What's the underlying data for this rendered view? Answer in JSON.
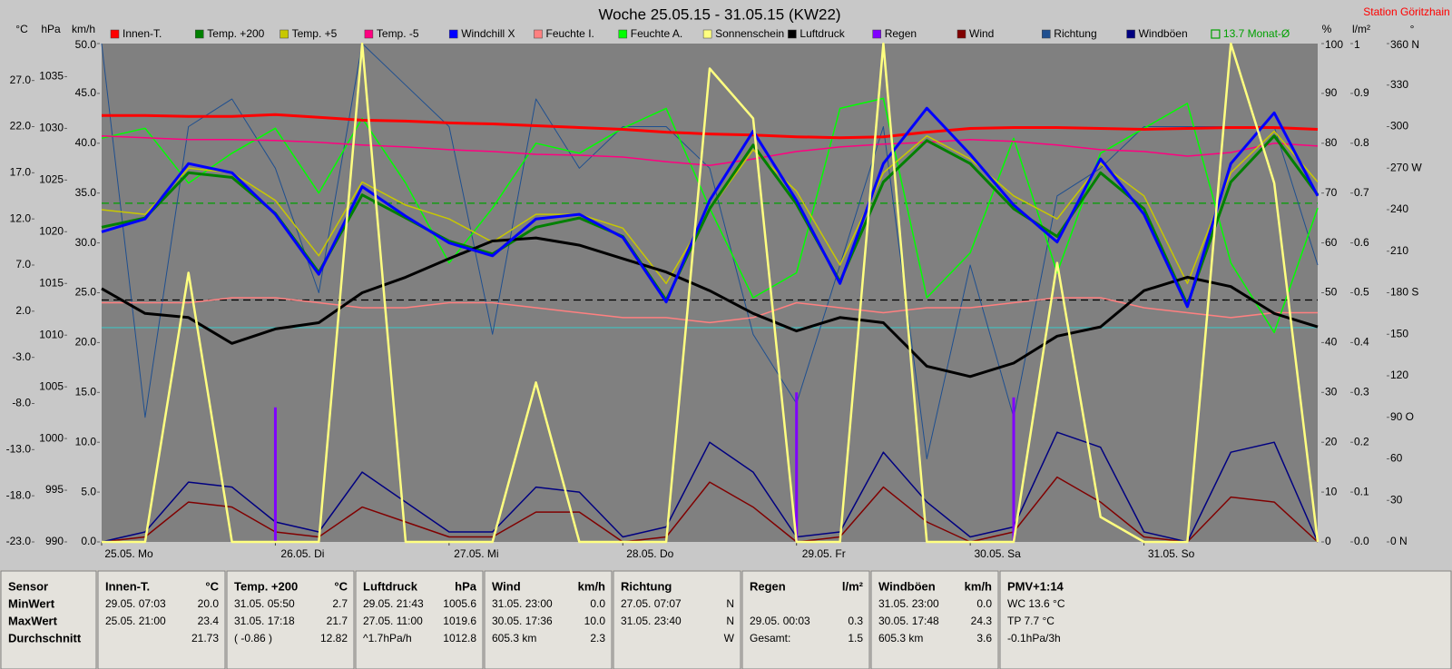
{
  "chart_data": {
    "type": "line",
    "title": "Woche 25.05.15 - 31.05.15 (KW22)",
    "station": "Station Göritzhain",
    "x": [
      0,
      6,
      12,
      18,
      24,
      30,
      36,
      42,
      48,
      54,
      60,
      66,
      72,
      78,
      84,
      90,
      96,
      102,
      108,
      114,
      120,
      126,
      132,
      138,
      144,
      150,
      156,
      162,
      168
    ],
    "xlim": [
      0,
      168
    ],
    "xticks": [
      {
        "value": 0,
        "label": "25.05. Mo"
      },
      {
        "value": 24,
        "label": "26.05. Di"
      },
      {
        "value": 48,
        "label": "27.05. Mi"
      },
      {
        "value": 72,
        "label": "28.05. Do"
      },
      {
        "value": 96,
        "label": "29.05. Fr"
      },
      {
        "value": 120,
        "label": "30.05. Sa"
      },
      {
        "value": 144,
        "label": "31.05. So"
      }
    ],
    "axes": [
      {
        "id": "temp",
        "label": "°C",
        "side": "left",
        "lim": [
          -23,
          31
        ],
        "ticks": [
          {
            "value": -23,
            "label": "-23.0"
          },
          {
            "value": -18,
            "label": "-18.0"
          },
          {
            "value": -13,
            "label": "-13.0"
          },
          {
            "value": -8,
            "label": "-8.0"
          },
          {
            "value": -3,
            "label": "-3.0"
          },
          {
            "value": 2,
            "label": "2.0"
          },
          {
            "value": 7,
            "label": "7.0"
          },
          {
            "value": 12,
            "label": "12.0"
          },
          {
            "value": 17,
            "label": "17.0"
          },
          {
            "value": 22,
            "label": "22.0"
          },
          {
            "value": 27,
            "label": "27.0"
          }
        ]
      },
      {
        "id": "hpa",
        "label": "hPa",
        "side": "left",
        "lim": [
          990,
          1038.2
        ],
        "ticks": [
          990,
          995,
          1000,
          1005,
          1010,
          1015,
          1020,
          1025,
          1030,
          1035
        ]
      },
      {
        "id": "kmh",
        "label": "km/h",
        "side": "left",
        "lim": [
          0,
          50
        ],
        "ticks": [
          {
            "value": 0,
            "label": "0.0"
          },
          {
            "value": 5,
            "label": "5.0"
          },
          {
            "value": 10,
            "label": "10.0"
          },
          {
            "value": 15,
            "label": "15.0"
          },
          {
            "value": 20,
            "label": "20.0"
          },
          {
            "value": 25,
            "label": "25.0"
          },
          {
            "value": 30,
            "label": "30.0"
          },
          {
            "value": 35,
            "label": "35.0"
          },
          {
            "value": 40,
            "label": "40.0"
          },
          {
            "value": 45,
            "label": "45.0"
          },
          {
            "value": 50,
            "label": "50.0"
          }
        ]
      },
      {
        "id": "pct",
        "label": "%",
        "side": "right",
        "lim": [
          0,
          100
        ],
        "ticks": [
          0,
          10,
          20,
          30,
          40,
          50,
          60,
          70,
          80,
          90,
          100
        ]
      },
      {
        "id": "lm2",
        "label": "l/m²",
        "side": "right",
        "lim": [
          0,
          1
        ],
        "ticks": [
          {
            "value": 0,
            "label": "0.0"
          },
          0.1,
          0.2,
          0.3,
          0.4,
          0.5,
          0.6,
          0.7,
          0.8,
          0.9,
          1
        ]
      },
      {
        "id": "deg",
        "label": "°",
        "side": "right",
        "lim": [
          0,
          360
        ],
        "ticks": [
          {
            "value": 0,
            "label": "0 N"
          },
          30,
          60,
          {
            "value": 90,
            "label": "90 O"
          },
          120,
          150,
          {
            "value": 180,
            "label": "180 S"
          },
          210,
          240,
          {
            "value": 270,
            "label": "270 W"
          },
          300,
          330,
          {
            "value": 360,
            "label": "360 N"
          }
        ]
      }
    ],
    "series": [
      {
        "name": "Innen-T.",
        "color": "#ff0000",
        "axis": "temp",
        "values": [
          23.2,
          23.2,
          23.1,
          23.1,
          23.3,
          23.0,
          22.7,
          22.6,
          22.4,
          22.3,
          22.1,
          21.9,
          21.7,
          21.4,
          21.2,
          21.1,
          20.9,
          20.8,
          20.9,
          21.4,
          21.8,
          21.9,
          21.9,
          21.8,
          21.7,
          21.8,
          21.9,
          21.9,
          21.7
        ]
      },
      {
        "name": "Temp. +200",
        "color": "#008000",
        "axis": "temp",
        "values": [
          11.1,
          12.1,
          17.0,
          16.5,
          12.6,
          6.2,
          14.6,
          12.1,
          9.6,
          8.2,
          11.1,
          12.1,
          10.1,
          3.2,
          13.1,
          20.0,
          13.6,
          5.2,
          16.0,
          20.5,
          18.0,
          13.1,
          10.1,
          17.0,
          13.1,
          2.7,
          16.0,
          21.0,
          14.6
        ]
      },
      {
        "name": "Temp. +5",
        "color": "#c8c800",
        "axis": "temp",
        "values": [
          13.0,
          12.5,
          17.5,
          17.0,
          14.0,
          8.0,
          16.0,
          13.5,
          12.0,
          9.5,
          12.5,
          12.5,
          11.0,
          5.0,
          13.0,
          19.5,
          15.0,
          7.0,
          17.0,
          21.0,
          18.5,
          14.5,
          12.0,
          18.0,
          14.5,
          5.0,
          17.0,
          21.5,
          16.0
        ]
      },
      {
        "name": "Temp. -5",
        "color": "#ff0080",
        "axis": "temp",
        "values": [
          21.0,
          20.8,
          20.6,
          20.6,
          20.5,
          20.3,
          20.0,
          19.8,
          19.5,
          19.3,
          19.0,
          18.9,
          18.7,
          18.2,
          17.8,
          18.5,
          19.3,
          19.8,
          20.1,
          20.3,
          20.6,
          20.4,
          20.0,
          19.5,
          19.3,
          18.8,
          19.2,
          20.2,
          19.9
        ]
      },
      {
        "name": "Windchill X",
        "color": "#0000ff",
        "axis": "temp",
        "values": [
          10.6,
          12.0,
          18.0,
          17.0,
          12.5,
          6.0,
          15.5,
          12.3,
          9.4,
          8.0,
          12.0,
          12.5,
          10.0,
          3.0,
          14.0,
          21.5,
          14.0,
          5.0,
          18.0,
          24.0,
          19.0,
          13.5,
          9.5,
          18.5,
          12.5,
          2.5,
          18.0,
          23.5,
          14.5
        ]
      },
      {
        "name": "Feuchte I.",
        "color": "#ff8080",
        "axis": "pct",
        "values": [
          48,
          48,
          48,
          49,
          49,
          48,
          47,
          47,
          48,
          48,
          47,
          46,
          45,
          45,
          44,
          45,
          48,
          47,
          46,
          47,
          47,
          48,
          49,
          49,
          47,
          46,
          45,
          46,
          46
        ]
      },
      {
        "name": "Feuchte A.",
        "color": "#00ff00",
        "axis": "pct",
        "values": [
          81,
          83,
          72,
          78,
          83,
          70,
          85,
          72,
          56,
          67,
          80,
          78,
          83,
          87,
          67,
          49,
          54,
          87,
          89,
          49,
          58,
          81,
          54,
          78,
          83,
          88,
          56,
          42,
          67
        ]
      },
      {
        "name": "Sonnenschein",
        "color": "#ffff80",
        "axis": "pct",
        "values": [
          0,
          0,
          54,
          0,
          0,
          0,
          100,
          0,
          0,
          0,
          32,
          0,
          0,
          0,
          95,
          85,
          0,
          0,
          100,
          0,
          0,
          0,
          56,
          5,
          0,
          0,
          100,
          72,
          0
        ]
      },
      {
        "name": "Luftdruck",
        "color": "#000000",
        "axis": "hpa",
        "values": [
          1014.5,
          1012.1,
          1011.7,
          1009.2,
          1010.6,
          1011.2,
          1014.1,
          1015.6,
          1017.4,
          1019.1,
          1019.4,
          1018.7,
          1017.4,
          1016.1,
          1014.3,
          1012.1,
          1010.4,
          1011.7,
          1011.2,
          1007.0,
          1006.0,
          1007.3,
          1009.9,
          1010.8,
          1014.3,
          1015.6,
          1014.7,
          1012.1,
          1010.8
        ]
      },
      {
        "name": "Regen",
        "color": "#8000ff",
        "axis": "lm2",
        "kind": "bar",
        "values": [
          0,
          0,
          0,
          0,
          0.27,
          0,
          0,
          0,
          0,
          0,
          0,
          0,
          0,
          0,
          0,
          0,
          0.3,
          0,
          0,
          0,
          0,
          0.29,
          0,
          0,
          0,
          0,
          0,
          0,
          0
        ]
      },
      {
        "name": "Wind",
        "color": "#800000",
        "axis": "kmh",
        "values": [
          0,
          0.5,
          4.0,
          3.5,
          1.0,
          0.5,
          3.5,
          2.0,
          0.5,
          0.5,
          3.0,
          3.0,
          0,
          0.5,
          6.0,
          3.5,
          0,
          0.5,
          5.5,
          2.0,
          0,
          1.0,
          6.5,
          4.0,
          0.5,
          0,
          4.5,
          4.0,
          0
        ]
      },
      {
        "name": "Richtung",
        "color": "#1f4f8f",
        "axis": "deg",
        "values": [
          360,
          90,
          300,
          320,
          270,
          180,
          360,
          330,
          300,
          150,
          320,
          270,
          300,
          300,
          270,
          150,
          100,
          200,
          300,
          60,
          200,
          90,
          250,
          270,
          300,
          300,
          300,
          300,
          200
        ]
      },
      {
        "name": "Windböen",
        "color": "#000080",
        "axis": "kmh",
        "values": [
          0,
          1,
          6,
          5.5,
          2,
          1,
          7,
          4,
          1,
          1,
          5.5,
          5,
          0.5,
          1.5,
          10,
          7,
          0.5,
          1,
          9,
          4,
          0.5,
          1.5,
          11,
          9.5,
          1,
          0,
          9,
          10,
          0
        ]
      }
    ],
    "reference_lines": [
      {
        "label": "13.7 Monat-Ø",
        "value": 13.7,
        "axis": "temp",
        "color": "#00a000"
      },
      {
        "value": 1013.4,
        "axis": "hpa",
        "color": "#000000"
      },
      {
        "value": 43,
        "axis": "pct",
        "color": "#40c0c0"
      }
    ]
  },
  "table": {
    "columns": [
      {
        "header": [
          "Sensor"
        ],
        "rows": [
          [
            "MinWert"
          ],
          [
            "MaxWert"
          ],
          [
            "Durchschnitt"
          ]
        ]
      },
      {
        "header": [
          "Innen-T.",
          "°C"
        ],
        "rows": [
          [
            "29.05. 07:03",
            "20.0"
          ],
          [
            "25.05. 21:00",
            "23.4"
          ],
          [
            null,
            "21.73"
          ]
        ]
      },
      {
        "header": [
          "Temp. +200",
          "°C"
        ],
        "rows": [
          [
            "31.05. 05:50",
            "2.7"
          ],
          [
            "31.05. 17:18",
            "21.7"
          ],
          [
            "( -0.86 )",
            "12.82"
          ]
        ]
      },
      {
        "header": [
          "Luftdruck",
          "hPa"
        ],
        "rows": [
          [
            "29.05. 21:43",
            "1005.6"
          ],
          [
            "27.05. 11:00",
            "1019.6"
          ],
          [
            "^1.7hPa/h",
            "1012.8"
          ]
        ]
      },
      {
        "header": [
          "Wind",
          "km/h"
        ],
        "rows": [
          [
            "31.05. 23:00",
            "0.0"
          ],
          [
            "30.05. 17:36",
            "10.0"
          ],
          [
            "605.3 km",
            "2.3"
          ]
        ]
      },
      {
        "header": [
          "Richtung"
        ],
        "rows": [
          [
            "27.05. 07:07",
            "N"
          ],
          [
            "31.05. 23:40",
            "N"
          ],
          [
            null,
            "W"
          ]
        ]
      },
      {
        "header": [
          "Regen",
          "l/m²"
        ],
        "rows": [
          [
            null,
            null
          ],
          [
            "29.05. 00:03",
            "0.3"
          ],
          [
            "Gesamt:",
            "1.5"
          ]
        ]
      },
      {
        "header": [
          "Windböen",
          "km/h"
        ],
        "rows": [
          [
            "31.05. 23:00",
            "0.0"
          ],
          [
            "30.05. 17:48",
            "24.3"
          ],
          [
            "605.3 km",
            "3.6"
          ]
        ]
      },
      {
        "header": [
          "PMV+1:14"
        ],
        "rows": [
          [
            "WC 13.6 °C"
          ],
          [
            "TP 7.7 °C"
          ],
          [
            "-0.1hPa/3h"
          ]
        ]
      }
    ]
  }
}
